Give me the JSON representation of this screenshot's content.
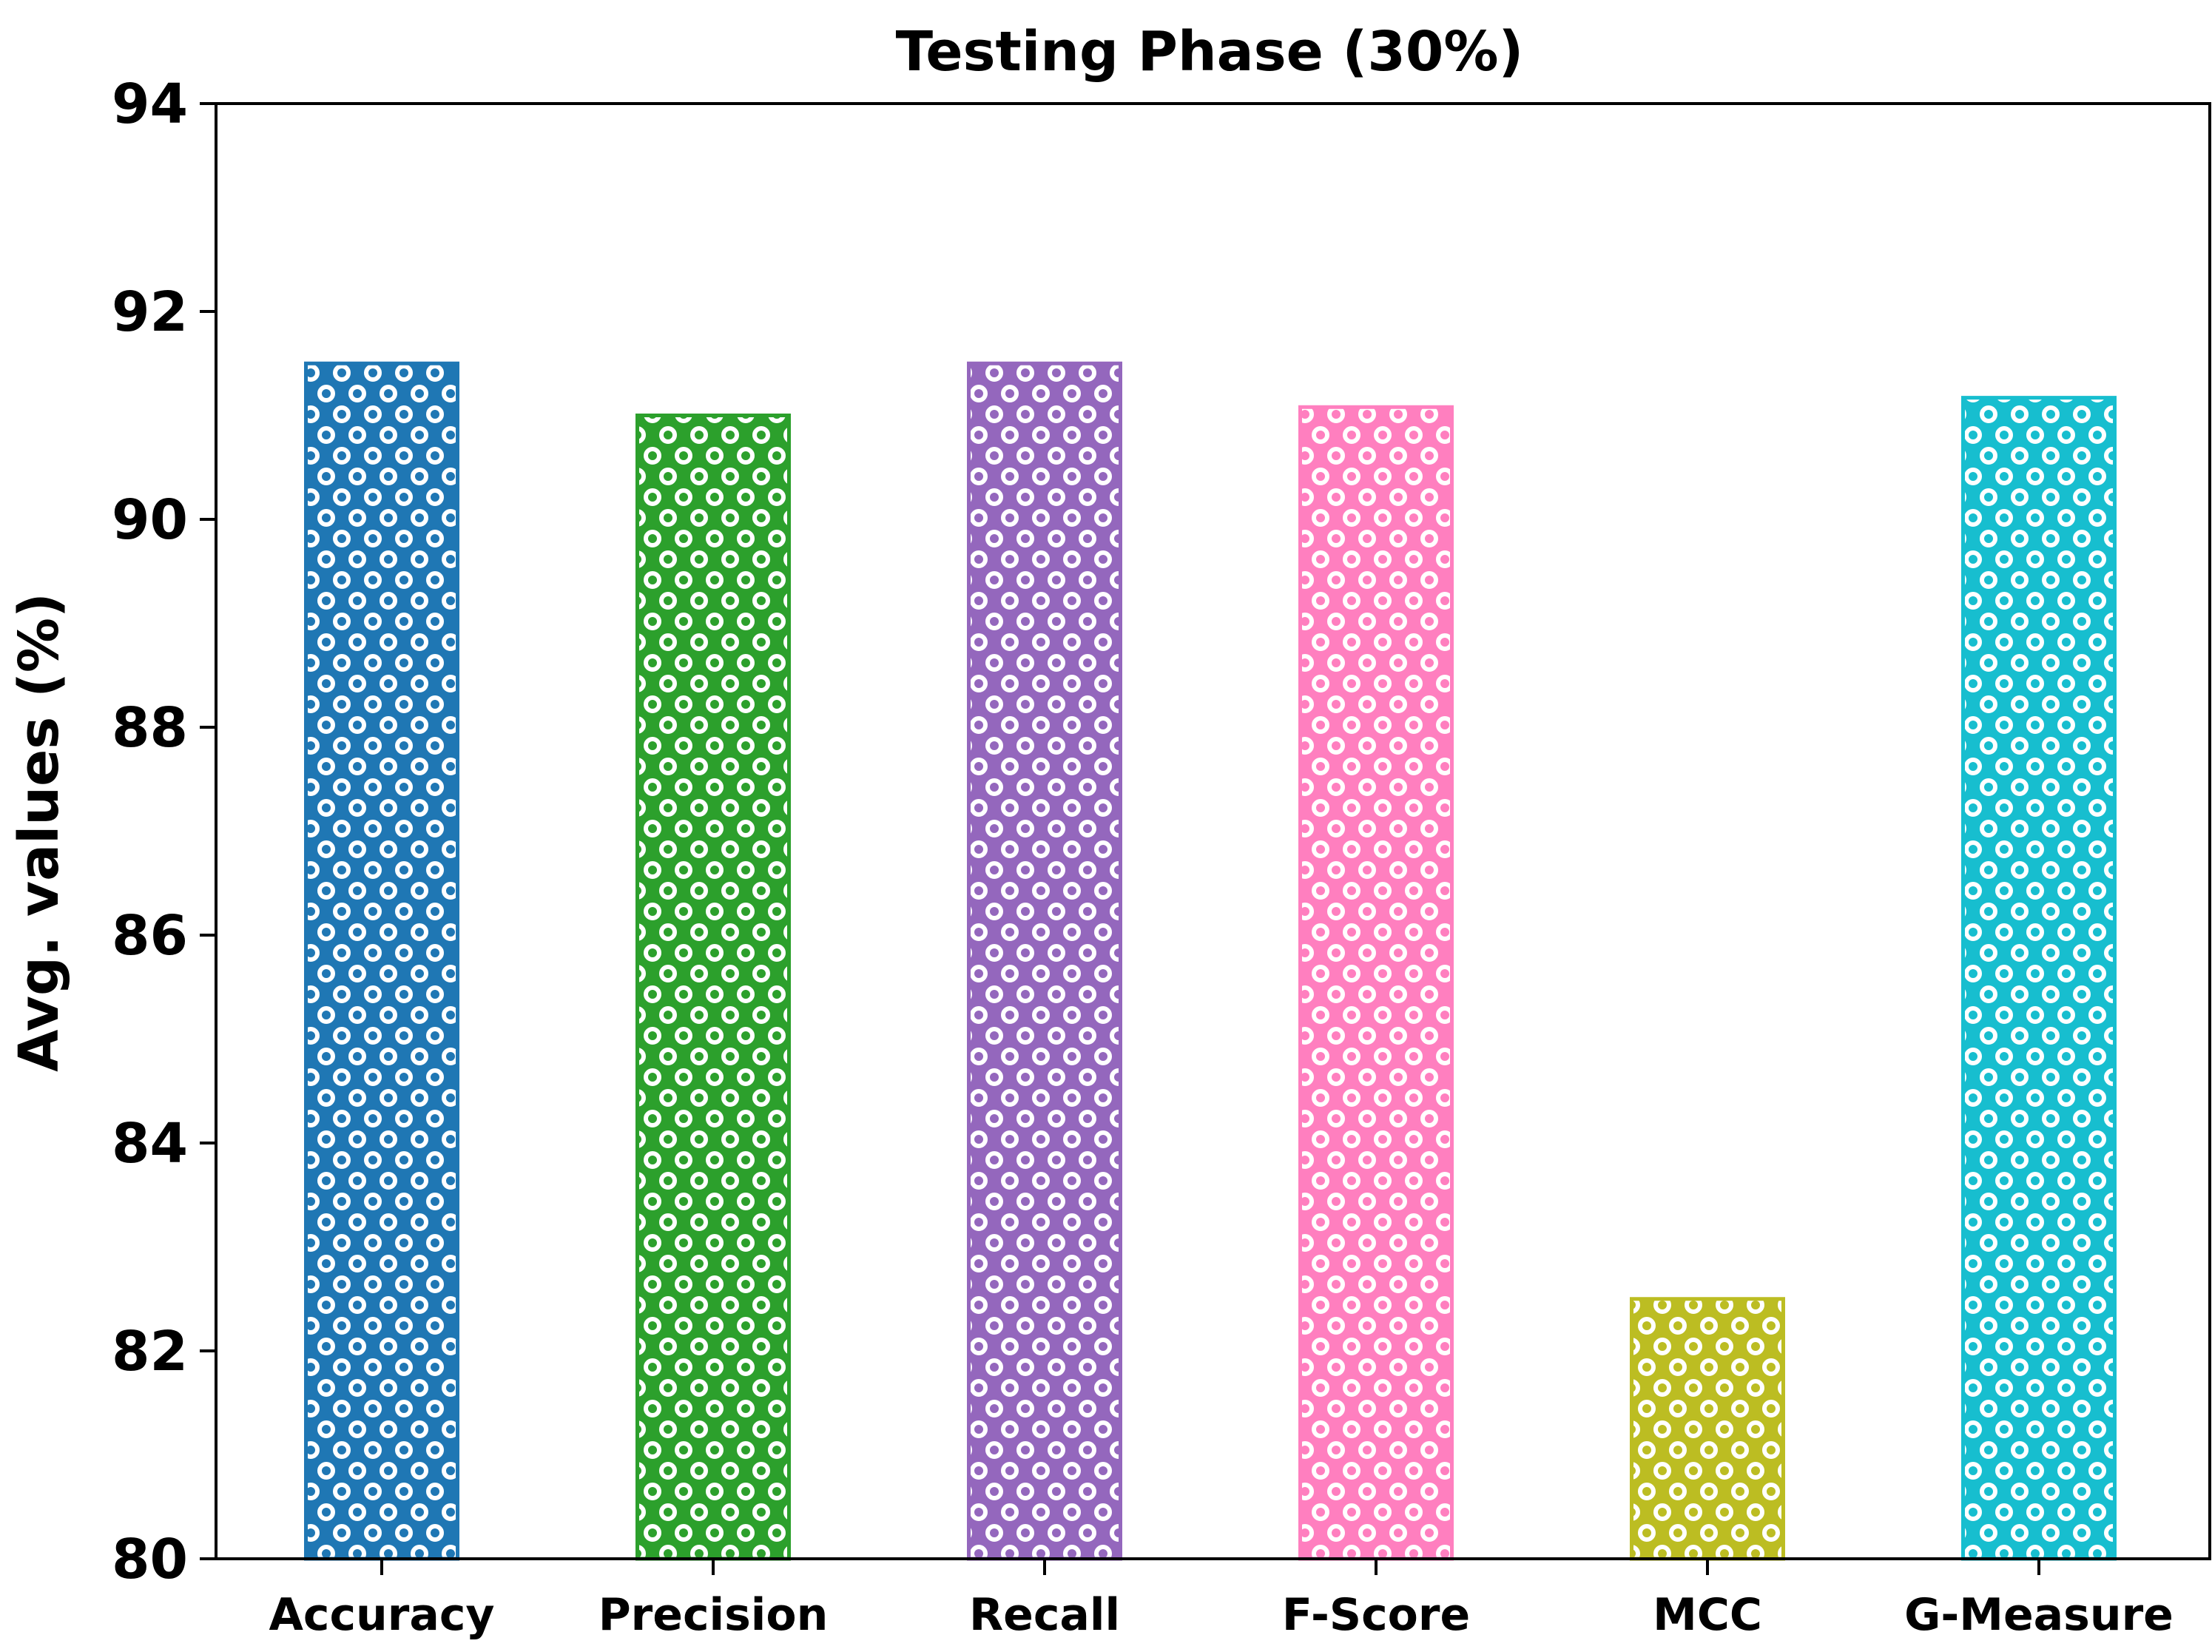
{
  "chart_data": {
    "type": "bar",
    "title": "Testing Phase (30%)",
    "xlabel": "",
    "ylabel": "Avg. values (%)",
    "ylim": [
      80,
      94
    ],
    "yticks": [
      80,
      82,
      84,
      86,
      88,
      90,
      92,
      94
    ],
    "ytick_labels": [
      "80",
      "82",
      "84",
      "86",
      "88",
      "90",
      "92",
      "94"
    ],
    "categories": [
      "Accuracy",
      "Precision",
      "Recall",
      "F-Score",
      "MCC",
      "G-Measure"
    ],
    "values": [
      91.5,
      91.0,
      91.5,
      91.08,
      82.5,
      91.17
    ],
    "colors": [
      "#1f77b4",
      "#2ca02c",
      "#9467bd",
      "#ff7fbf",
      "#bcbd22",
      "#17becf"
    ],
    "fill_pattern": "hexagonal dot/ring hatch",
    "grid": false,
    "legend": "none"
  }
}
